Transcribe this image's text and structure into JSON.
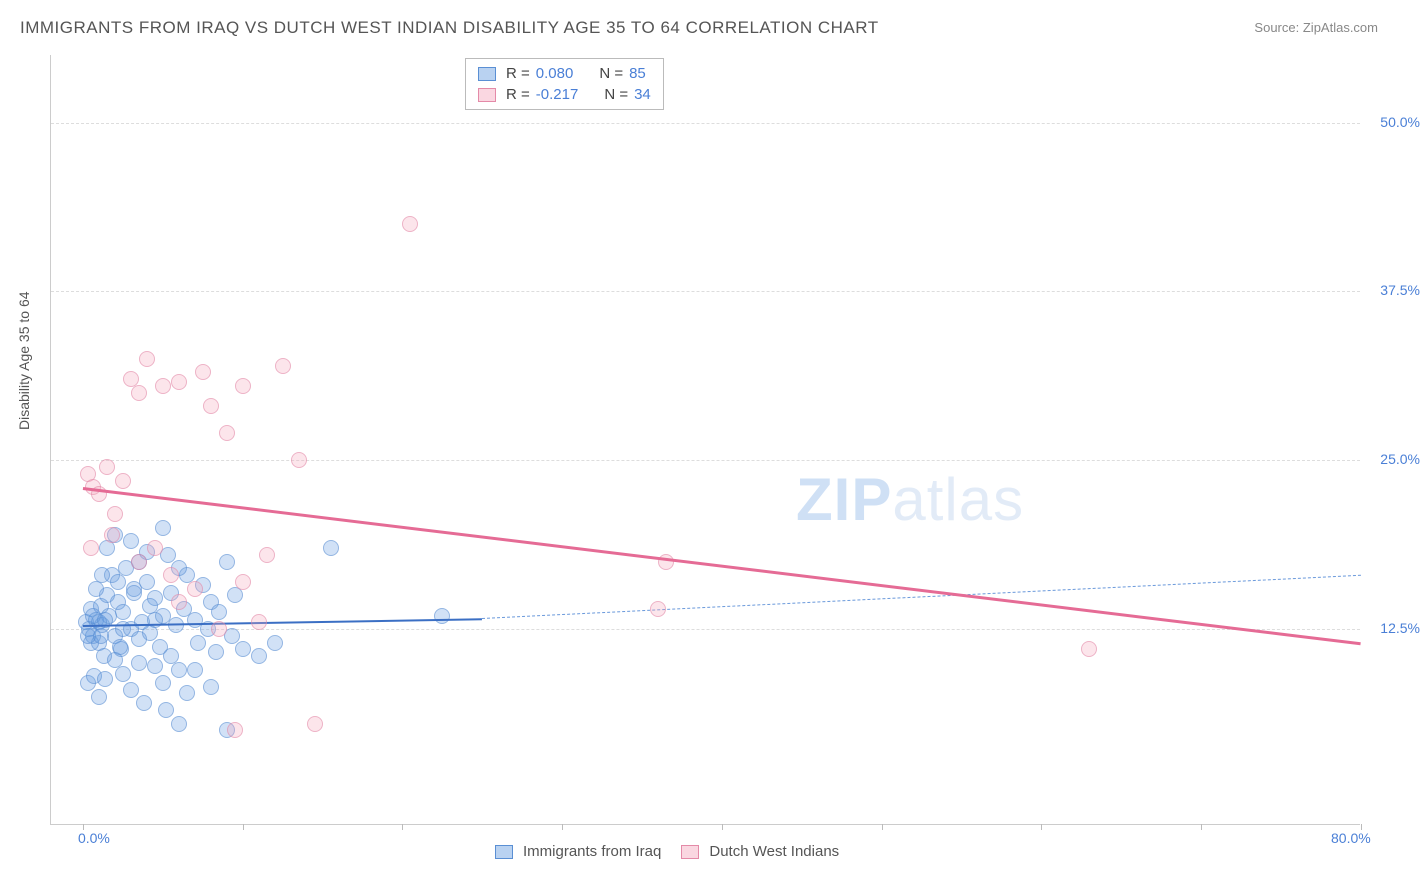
{
  "title": "IMMIGRANTS FROM IRAQ VS DUTCH WEST INDIAN DISABILITY AGE 35 TO 64 CORRELATION CHART",
  "source_label": "Source:",
  "source_value": "ZipAtlas.com",
  "ylabel": "Disability Age 35 to 64",
  "watermark_bold": "ZIP",
  "watermark_rest": "atlas",
  "legend_top": {
    "rows": [
      {
        "swatch": "blue",
        "r_label": "R =",
        "r_value": "0.080",
        "n_label": "N =",
        "n_value": "85"
      },
      {
        "swatch": "pink",
        "r_label": "R =",
        "r_value": "-0.217",
        "n_label": "N =",
        "n_value": "34"
      }
    ]
  },
  "legend_bottom": [
    {
      "swatch": "blue",
      "label": "Immigrants from Iraq"
    },
    {
      "swatch": "pink",
      "label": "Dutch West Indians"
    }
  ],
  "chart": {
    "type": "scatter",
    "x_min": -2,
    "x_max": 80,
    "y_min": -2,
    "y_max": 55,
    "x_ticks": [
      {
        "x": 0,
        "label": "0.0%"
      },
      {
        "x": 80,
        "label": "80.0%"
      }
    ],
    "x_minor_ticks": [
      0,
      10,
      20,
      30,
      40,
      50,
      60,
      70,
      80
    ],
    "y_ticks": [
      {
        "y": 12.5,
        "label": "12.5%"
      },
      {
        "y": 25.0,
        "label": "25.0%"
      },
      {
        "y": 37.5,
        "label": "37.5%"
      },
      {
        "y": 50.0,
        "label": "50.0%"
      }
    ],
    "grid_color": "#dddddd",
    "background_color": "#ffffff",
    "series": [
      {
        "name": "Immigrants from Iraq",
        "class": "blue",
        "points": [
          [
            0.2,
            13.0
          ],
          [
            0.4,
            12.5
          ],
          [
            0.5,
            14.0
          ],
          [
            0.6,
            12.0
          ],
          [
            0.8,
            13.2
          ],
          [
            1.0,
            11.5
          ],
          [
            1.1,
            14.2
          ],
          [
            1.2,
            12.8
          ],
          [
            1.3,
            10.5
          ],
          [
            1.5,
            15.0
          ],
          [
            1.6,
            13.5
          ],
          [
            1.8,
            16.5
          ],
          [
            2.0,
            12.0
          ],
          [
            2.2,
            14.5
          ],
          [
            2.4,
            11.0
          ],
          [
            2.5,
            13.8
          ],
          [
            2.7,
            17.0
          ],
          [
            3.0,
            12.5
          ],
          [
            3.2,
            15.5
          ],
          [
            3.5,
            10.0
          ],
          [
            3.7,
            13.0
          ],
          [
            4.0,
            16.0
          ],
          [
            4.2,
            12.2
          ],
          [
            4.5,
            14.8
          ],
          [
            4.8,
            11.2
          ],
          [
            5.0,
            13.5
          ],
          [
            5.3,
            18.0
          ],
          [
            5.5,
            15.2
          ],
          [
            5.8,
            12.8
          ],
          [
            6.0,
            9.5
          ],
          [
            6.3,
            14.0
          ],
          [
            6.5,
            16.5
          ],
          [
            7.0,
            13.2
          ],
          [
            7.2,
            11.5
          ],
          [
            7.5,
            15.8
          ],
          [
            7.8,
            12.5
          ],
          [
            8.0,
            14.5
          ],
          [
            8.3,
            10.8
          ],
          [
            8.5,
            13.8
          ],
          [
            9.0,
            17.5
          ],
          [
            9.3,
            12.0
          ],
          [
            9.5,
            15.0
          ],
          [
            0.3,
            8.5
          ],
          [
            0.7,
            9.0
          ],
          [
            1.0,
            7.5
          ],
          [
            1.4,
            8.8
          ],
          [
            2.0,
            10.2
          ],
          [
            2.5,
            9.2
          ],
          [
            3.0,
            8.0
          ],
          [
            3.8,
            7.0
          ],
          [
            4.5,
            9.8
          ],
          [
            5.0,
            8.5
          ],
          [
            5.5,
            10.5
          ],
          [
            6.5,
            7.8
          ],
          [
            7.0,
            9.5
          ],
          [
            8.0,
            8.2
          ],
          [
            1.5,
            18.5
          ],
          [
            2.0,
            19.5
          ],
          [
            3.0,
            19.0
          ],
          [
            3.5,
            17.5
          ],
          [
            4.0,
            18.2
          ],
          [
            5.0,
            20.0
          ],
          [
            6.0,
            17.0
          ],
          [
            0.5,
            11.5
          ],
          [
            1.0,
            13.0
          ],
          [
            2.5,
            12.5
          ],
          [
            3.5,
            11.8
          ],
          [
            4.5,
            13.2
          ],
          [
            0.8,
            15.5
          ],
          [
            1.2,
            16.5
          ],
          [
            2.2,
            16.0
          ],
          [
            3.2,
            15.2
          ],
          [
            4.2,
            14.2
          ],
          [
            0.3,
            12.0
          ],
          [
            0.6,
            13.5
          ],
          [
            1.1,
            12.0
          ],
          [
            1.4,
            13.2
          ],
          [
            2.3,
            11.2
          ],
          [
            5.2,
            6.5
          ],
          [
            6.0,
            5.5
          ],
          [
            9.0,
            5.0
          ],
          [
            10.0,
            11.0
          ],
          [
            11.0,
            10.5
          ],
          [
            12.0,
            11.5
          ],
          [
            15.5,
            18.5
          ],
          [
            22.5,
            13.5
          ]
        ],
        "trend": {
          "x1": 0,
          "y1": 12.8,
          "x2": 25,
          "y2": 13.3,
          "color": "#3b6fc4",
          "width": 2,
          "dash": false
        },
        "trend_ext": {
          "x1": 25,
          "y1": 13.3,
          "x2": 80,
          "y2": 16.5,
          "color": "#6a99db",
          "width": 1.5,
          "dash": true
        }
      },
      {
        "name": "Dutch West Indians",
        "class": "pink",
        "points": [
          [
            0.3,
            24.0
          ],
          [
            0.6,
            23.0
          ],
          [
            1.0,
            22.5
          ],
          [
            1.5,
            24.5
          ],
          [
            2.0,
            21.0
          ],
          [
            2.5,
            23.5
          ],
          [
            3.0,
            31.0
          ],
          [
            3.5,
            30.0
          ],
          [
            4.0,
            32.5
          ],
          [
            5.0,
            30.5
          ],
          [
            6.0,
            30.8
          ],
          [
            7.5,
            31.5
          ],
          [
            8.0,
            29.0
          ],
          [
            9.0,
            27.0
          ],
          [
            10.0,
            30.5
          ],
          [
            12.5,
            32.0
          ],
          [
            6.0,
            14.5
          ],
          [
            7.0,
            15.5
          ],
          [
            8.5,
            12.5
          ],
          [
            10.0,
            16.0
          ],
          [
            11.0,
            13.0
          ],
          [
            3.5,
            17.5
          ],
          [
            4.5,
            18.5
          ],
          [
            5.5,
            16.5
          ],
          [
            13.5,
            25.0
          ],
          [
            14.5,
            5.5
          ],
          [
            9.5,
            5.0
          ],
          [
            11.5,
            18.0
          ],
          [
            0.5,
            18.5
          ],
          [
            1.8,
            19.5
          ],
          [
            20.5,
            42.5
          ],
          [
            36.0,
            14.0
          ],
          [
            36.5,
            17.5
          ],
          [
            63.0,
            11.0
          ]
        ],
        "trend": {
          "x1": 0,
          "y1": 23.0,
          "x2": 80,
          "y2": 11.5,
          "color": "#e56b95",
          "width": 2.5,
          "dash": false
        }
      }
    ]
  }
}
